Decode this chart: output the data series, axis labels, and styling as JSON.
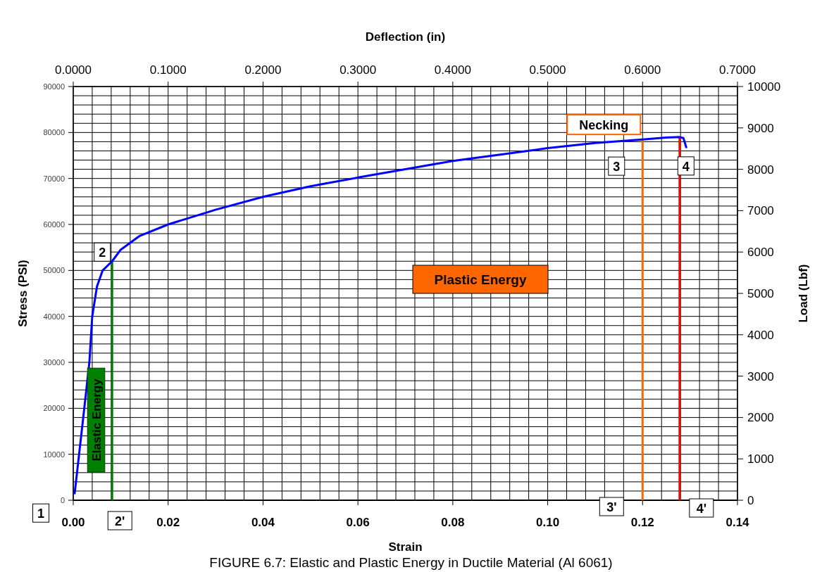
{
  "chart_data": {
    "type": "line",
    "xlabel": "Strain",
    "x2label": "Deflection (in)",
    "ylabel": "Stress (PSI)",
    "y2label": "Load (Lbf)",
    "x": [
      0.0003,
      0.002,
      0.0034,
      0.004,
      0.005,
      0.0062,
      0.0082,
      0.01,
      0.014,
      0.02,
      0.03,
      0.04,
      0.05,
      0.06,
      0.07,
      0.08,
      0.09,
      0.1,
      0.11,
      0.12,
      0.125,
      0.1278,
      0.1286,
      0.1292
    ],
    "series": [
      {
        "color": "#0000ff",
        "values": [
          1500,
          17000,
          30000,
          40000,
          46500,
          50000,
          52000,
          54500,
          57500,
          60000,
          63200,
          66000,
          68300,
          70200,
          72000,
          73800,
          75200,
          76600,
          77700,
          78500,
          78900,
          79000,
          78800,
          76800
        ]
      }
    ],
    "xlim": [
      0,
      0.14
    ],
    "xticks": [
      {
        "value": 0,
        "label": "0.00"
      },
      {
        "value": 0.004,
        "label": null
      },
      {
        "value": 0.008,
        "label": null
      },
      {
        "value": 0.012,
        "label": null
      },
      {
        "value": 0.016,
        "label": null
      },
      {
        "value": 0.02,
        "label": "0.02"
      },
      {
        "value": 0.024,
        "label": null
      },
      {
        "value": 0.028,
        "label": null
      },
      {
        "value": 0.032,
        "label": null
      },
      {
        "value": 0.036,
        "label": null
      },
      {
        "value": 0.04,
        "label": "0.04"
      },
      {
        "value": 0.044,
        "label": null
      },
      {
        "value": 0.048,
        "label": null
      },
      {
        "value": 0.052,
        "label": null
      },
      {
        "value": 0.056,
        "label": null
      },
      {
        "value": 0.06,
        "label": "0.06"
      },
      {
        "value": 0.064,
        "label": null
      },
      {
        "value": 0.068,
        "label": null
      },
      {
        "value": 0.072,
        "label": null
      },
      {
        "value": 0.076,
        "label": null
      },
      {
        "value": 0.08,
        "label": "0.08"
      },
      {
        "value": 0.084,
        "label": null
      },
      {
        "value": 0.088,
        "label": null
      },
      {
        "value": 0.092,
        "label": null
      },
      {
        "value": 0.096,
        "label": null
      },
      {
        "value": 0.1,
        "label": "0.10"
      },
      {
        "value": 0.104,
        "label": null
      },
      {
        "value": 0.108,
        "label": null
      },
      {
        "value": 0.112,
        "label": null
      },
      {
        "value": 0.116,
        "label": null
      },
      {
        "value": 0.12,
        "label": "0.12"
      },
      {
        "value": 0.124,
        "label": null
      },
      {
        "value": 0.128,
        "label": null
      },
      {
        "value": 0.132,
        "label": null
      },
      {
        "value": 0.136,
        "label": null
      },
      {
        "value": 0.14,
        "label": "0.14"
      }
    ],
    "x2lim": [
      0,
      0.7
    ],
    "x2ticks": [
      {
        "value": 0,
        "label": "0.0000"
      },
      {
        "value": 0.1,
        "label": "0.1000"
      },
      {
        "value": 0.2,
        "label": "0.2000"
      },
      {
        "value": 0.3,
        "label": "0.3000"
      },
      {
        "value": 0.4,
        "label": "0.4000"
      },
      {
        "value": 0.5,
        "label": "0.5000"
      },
      {
        "value": 0.6,
        "label": "0.6000"
      },
      {
        "value": 0.7,
        "label": "0.7000"
      }
    ],
    "ylim": [
      0,
      90000
    ],
    "yticks": [
      0,
      {
        "value": 2000,
        "label": null
      },
      {
        "value": 4000,
        "label": null
      },
      {
        "value": 6000,
        "label": null
      },
      {
        "value": 8000,
        "label": null
      },
      10000,
      {
        "value": 12000,
        "label": null
      },
      {
        "value": 14000,
        "label": null
      },
      {
        "value": 16000,
        "label": null
      },
      {
        "value": 18000,
        "label": null
      },
      20000,
      {
        "value": 22000,
        "label": null
      },
      {
        "value": 24000,
        "label": null
      },
      {
        "value": 26000,
        "label": null
      },
      {
        "value": 28000,
        "label": null
      },
      30000,
      {
        "value": 32000,
        "label": null
      },
      {
        "value": 34000,
        "label": null
      },
      {
        "value": 36000,
        "label": null
      },
      {
        "value": 38000,
        "label": null
      },
      40000,
      {
        "value": 42000,
        "label": null
      },
      {
        "value": 44000,
        "label": null
      },
      {
        "value": 46000,
        "label": null
      },
      {
        "value": 48000,
        "label": null
      },
      50000,
      {
        "value": 52000,
        "label": null
      },
      {
        "value": 54000,
        "label": null
      },
      {
        "value": 56000,
        "label": null
      },
      {
        "value": 58000,
        "label": null
      },
      60000,
      {
        "value": 62000,
        "label": null
      },
      {
        "value": 64000,
        "label": null
      },
      {
        "value": 66000,
        "label": null
      },
      {
        "value": 68000,
        "label": null
      },
      70000,
      {
        "value": 72000,
        "label": null
      },
      {
        "value": 74000,
        "label": null
      },
      {
        "value": 76000,
        "label": null
      },
      {
        "value": 78000,
        "label": null
      },
      80000,
      {
        "value": 82000,
        "label": null
      },
      {
        "value": 84000,
        "label": null
      },
      {
        "value": 86000,
        "label": null
      },
      {
        "value": 88000,
        "label": null
      },
      90000
    ],
    "y2lim": [
      0,
      10000
    ],
    "y2ticks": [
      0,
      1000,
      2000,
      3000,
      4000,
      5000,
      6000,
      7000,
      8000,
      9000,
      10000
    ],
    "grid": true,
    "ref_lines": [
      {
        "axis": "x",
        "value": 0.0082,
        "color": "#008000"
      },
      {
        "axis": "x",
        "value": 0.12,
        "color": "#ff6600"
      },
      {
        "axis": "x",
        "value": 0.1278,
        "color": "#ff0000"
      }
    ],
    "annotations": [
      {
        "text": "1",
        "x": 0.0003,
        "y": 1500
      },
      {
        "text": "2",
        "x": 0.0082,
        "y": 52000
      },
      {
        "text": "2'",
        "x": 0.0082,
        "y": 0
      },
      {
        "text": "3",
        "x": 0.12,
        "y": 78500
      },
      {
        "text": "3'",
        "x": 0.12,
        "y": 0
      },
      {
        "text": "4",
        "x": 0.1278,
        "y": 79000
      },
      {
        "text": "4'",
        "x": 0.1278,
        "y": 0
      },
      {
        "text": "Necking",
        "x": 0.12,
        "y": 78500
      },
      "Plastic Energy",
      "Elastic Energy",
      "FIGURE 6.7: Elastic and Plastic Energy in Ductile Material (Al 6061)"
    ]
  }
}
